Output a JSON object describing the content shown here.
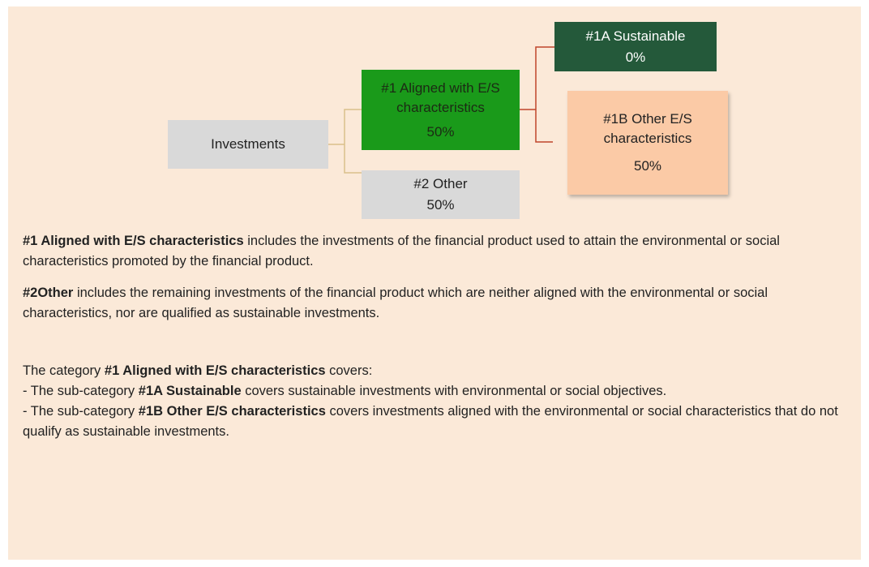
{
  "nodes": [
    {
      "label": [
        "Investments"
      ]
    },
    {
      "label": [
        "#1 Aligned with E/S",
        "characteristics"
      ],
      "value": "50%"
    },
    {
      "label": [
        "#2 Other"
      ],
      "value": "50%"
    },
    {
      "label": [
        "#1A Sustainable"
      ],
      "value": "0%"
    },
    {
      "label": [
        "#1B Other E/S",
        "characteristics"
      ],
      "value": "50%"
    }
  ],
  "definitions": [
    [
      {
        "text": "#1 Aligned with E/S characteristics",
        "bold": true
      },
      {
        "text": " includes the investments of the financial product used to attain the environmental or social characteristics promoted by the financial product.",
        "bold": false
      }
    ],
    [
      {
        "text": "#2Other",
        "bold": true
      },
      {
        "text": " includes the remaining investments of the financial product which are neither aligned with the environmental or social characteristics, nor are qualified as sustainable investments.",
        "bold": false
      }
    ]
  ],
  "category_notes": [
    [
      {
        "text": "The category ",
        "bold": false
      },
      {
        "text": "#1 Aligned with E/S characteristics",
        "bold": true
      },
      {
        "text": " covers:",
        "bold": false
      }
    ],
    [
      {
        "text": "- The sub-category ",
        "bold": false
      },
      {
        "text": "#1A Sustainable",
        "bold": true
      },
      {
        "text": " covers sustainable investments with environmental or social objectives.",
        "bold": false
      }
    ],
    [
      {
        "text": "- The sub-category ",
        "bold": false
      },
      {
        "text": "#1B Other E/S characteristics",
        "bold": true
      },
      {
        "text": " covers investments aligned with the environmental or social characteristics that do not qualify as sustainable investments.",
        "bold": false
      }
    ]
  ]
}
